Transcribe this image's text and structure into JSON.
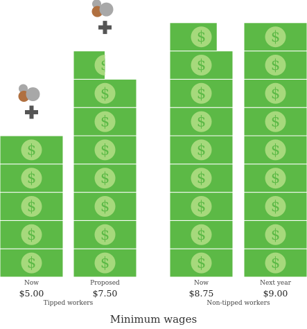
{
  "chart_data": {
    "type": "bar",
    "title": "Minimum wages",
    "unit_note": "each bill represents $1.00",
    "colors": {
      "bill": "#5cb946",
      "bill_line": "#ffffff",
      "coin_dark": "#b07040",
      "coin_light": "#a8a8a8",
      "plus": "#555555"
    },
    "groups": [
      {
        "label": "Tipped workers"
      },
      {
        "label": "Non-tipped workers"
      }
    ],
    "bars": [
      {
        "group": "Tipped workers",
        "category": "Now",
        "value_label": "$5.00",
        "value": 5.0,
        "tip_credit": true
      },
      {
        "group": "Tipped workers",
        "category": "Proposed",
        "value_label": "$7.50",
        "value": 7.5,
        "tip_credit": true
      },
      {
        "group": "Non-tipped workers",
        "category": "Now",
        "value_label": "$8.75",
        "value": 8.75,
        "tip_credit": false
      },
      {
        "group": "Non-tipped workers",
        "category": "Next year",
        "value_label": "$9.00",
        "value": 9.0,
        "tip_credit": false
      }
    ]
  }
}
